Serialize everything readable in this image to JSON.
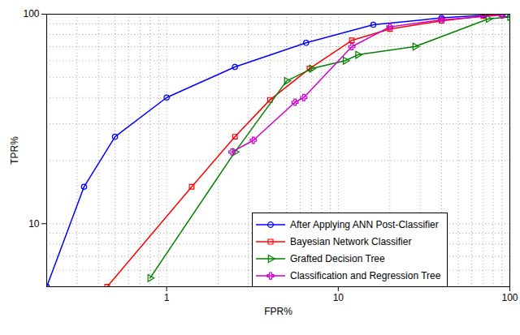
{
  "chart_data": {
    "type": "line",
    "log": true,
    "grid": true,
    "legend": "lower right",
    "x_label": "FPR%",
    "y_label": "TPR%",
    "xlim": [
      0.2,
      100
    ],
    "ylim": [
      5,
      100
    ],
    "xticks": [
      1,
      10,
      100
    ],
    "yticks": [
      10,
      100
    ],
    "series": [
      {
        "name": "After Applying ANN Post-Classifier",
        "color": "#0000ff",
        "marker": "circle",
        "x": [
          0.2,
          0.33,
          0.5,
          1,
          2.5,
          6.5,
          16,
          40,
          70,
          95
        ],
        "values": [
          5,
          15,
          26,
          40,
          56,
          73,
          89,
          96,
          99,
          100
        ]
      },
      {
        "name": "Bayesian Network Classifier",
        "color": "#ff0000",
        "marker": "square",
        "x": [
          0.45,
          1.4,
          2.5,
          4,
          6.8,
          12,
          20,
          40,
          70,
          90
        ],
        "values": [
          5,
          15,
          26,
          39,
          55,
          75,
          85,
          93,
          98,
          100
        ]
      },
      {
        "name": "Grafted Decision Tree",
        "color": "#008000",
        "marker": "triangle-right",
        "x": [
          0.8,
          2.5,
          5,
          7,
          11,
          13,
          28,
          75,
          100
        ],
        "values": [
          5.5,
          22,
          48,
          55,
          60,
          64,
          70,
          95,
          97
        ]
      },
      {
        "name": "Classification and Regression Tree",
        "color": "#cc00cc",
        "marker": "plus",
        "x": [
          2.4,
          3.2,
          5.6,
          6.3,
          12,
          20,
          40,
          90
        ],
        "values": [
          22,
          25,
          38,
          40,
          70,
          87,
          94,
          99
        ]
      }
    ]
  }
}
